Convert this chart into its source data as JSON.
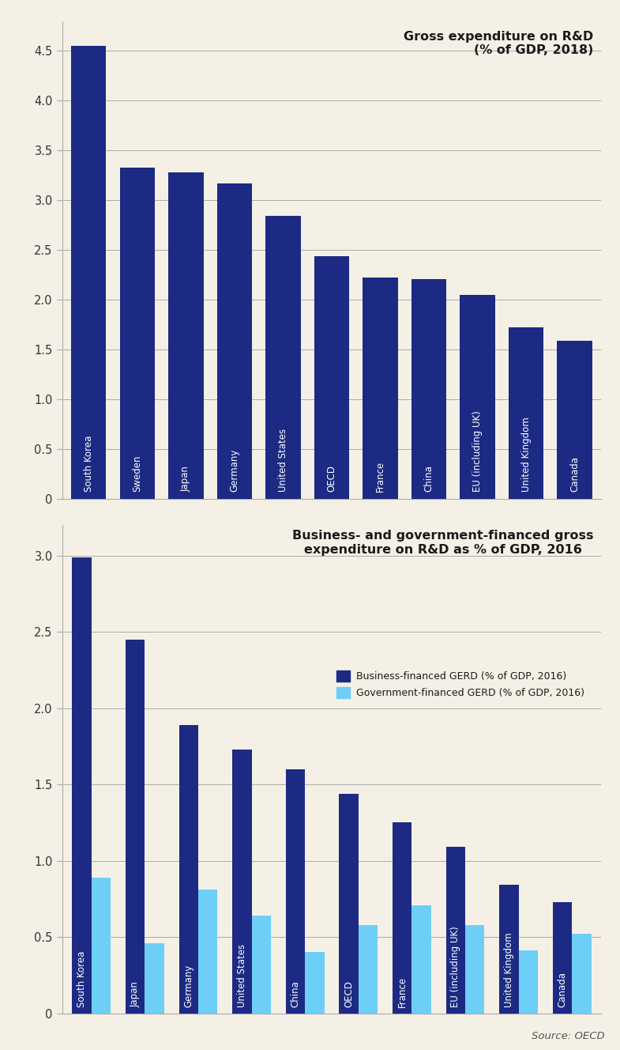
{
  "chart1": {
    "title": "Gross expenditure on R&D\n(% of GDP, 2018)",
    "categories": [
      "South Korea",
      "Sweden",
      "Japan",
      "Germany",
      "United States",
      "OECD",
      "France",
      "China",
      "EU (including UK)",
      "United Kingdom",
      "Canada"
    ],
    "values": [
      4.55,
      3.33,
      3.28,
      3.17,
      2.84,
      2.44,
      2.22,
      2.21,
      2.05,
      1.72,
      1.59
    ],
    "bar_color": "#1c2a84",
    "ylim": [
      0,
      4.8
    ],
    "yticks": [
      0,
      0.5,
      1.0,
      1.5,
      2.0,
      2.5,
      3.0,
      3.5,
      4.0,
      4.5
    ],
    "ytick_labels": [
      "0",
      "0.5",
      "1.0",
      "1.5",
      "2.0",
      "2.5",
      "3.0",
      "3.5",
      "4.0",
      "4.5"
    ]
  },
  "chart2": {
    "title": "Business- and government-financed gross\nexpenditure on R&D as % of GDP, 2016",
    "categories": [
      "South Korea",
      "Japan",
      "Germany",
      "United States",
      "China",
      "OECD",
      "France",
      "EU (including UK)",
      "United Kingdom",
      "Canada"
    ],
    "business_values": [
      2.99,
      2.45,
      1.89,
      1.73,
      1.6,
      1.44,
      1.25,
      1.09,
      0.84,
      0.73
    ],
    "government_values": [
      0.89,
      0.46,
      0.81,
      0.64,
      0.4,
      0.58,
      0.71,
      0.58,
      0.41,
      0.52
    ],
    "bar_color_business": "#1c2a84",
    "bar_color_government": "#6ecff6",
    "legend_business": "Business-financed GERD (% of GDP, 2016)",
    "legend_government": "Government-financed GERD (% of GDP, 2016)",
    "ylim": [
      0,
      3.2
    ],
    "yticks": [
      0,
      0.5,
      1.0,
      1.5,
      2.0,
      2.5,
      3.0
    ],
    "ytick_labels": [
      "0",
      "0.5",
      "1.0",
      "1.5",
      "2.0",
      "2.5",
      "3.0"
    ]
  },
  "background_color": "#f5f0e6",
  "source_text": "Source: OECD",
  "label_fontsize": 8.5,
  "title_fontsize": 11.5,
  "tick_fontsize": 10.5,
  "tick_line_color": "#aaaaaa",
  "spine_color": "#aaaaaa"
}
